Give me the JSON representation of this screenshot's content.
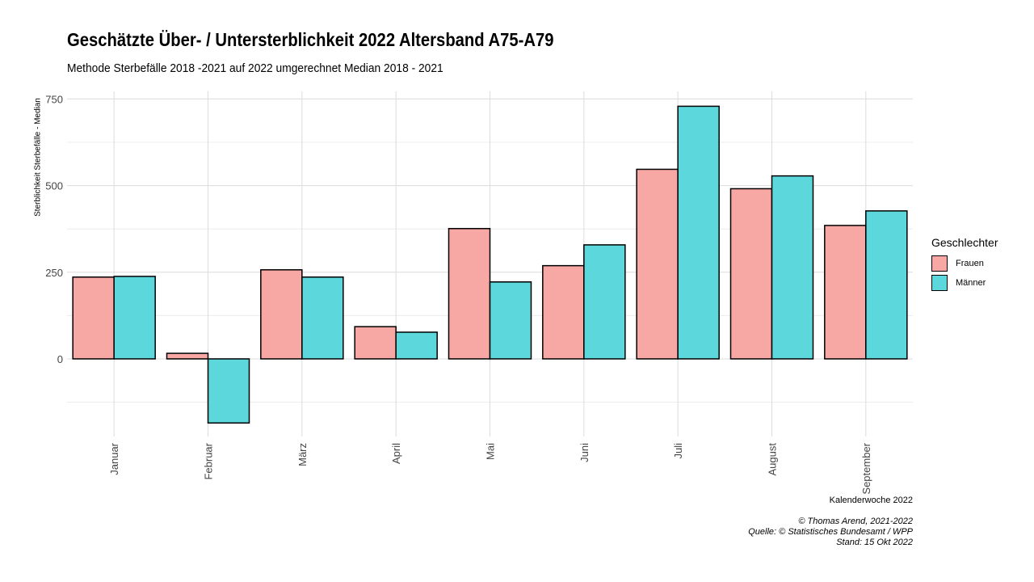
{
  "title": "Geschätzte Über- / Untersterblichkeit 2022 Altersband A75-A79",
  "subtitle": "Methode Sterbefälle 2018 -2021 auf 2022 umgerechnet Median 2018 - 2021",
  "caption": [
    "© Thomas Arend, 2021-2022",
    "Quelle: © Statistisches Bundesamt / WPP",
    "Stand: 15 Okt 2022"
  ],
  "chart_data": {
    "type": "bar",
    "title": "Geschätzte Über- / Untersterblichkeit 2022 Altersband A75-A79",
    "xlabel": "Kalenderwoche 2022",
    "ylabel": "Sterblichkeit Sterbefälle - Median",
    "ylim": [
      -224,
      772
    ],
    "yticks": [
      0,
      250,
      500,
      750
    ],
    "grid": true,
    "legend_title": "Geschlechter",
    "legend_position": "right",
    "categories": [
      "Januar",
      "Februar",
      "März",
      "April",
      "Mai",
      "Juni",
      "Juli",
      "August",
      "September"
    ],
    "series": [
      {
        "name": "Frauen",
        "color": "#F8A8A4",
        "values": [
          236,
          16,
          257,
          93,
          376,
          269,
          547,
          491,
          385
        ]
      },
      {
        "name": "Männer",
        "color": "#5CD8DC",
        "values": [
          238,
          -185,
          236,
          77,
          222,
          329,
          729,
          528,
          427
        ]
      }
    ]
  }
}
